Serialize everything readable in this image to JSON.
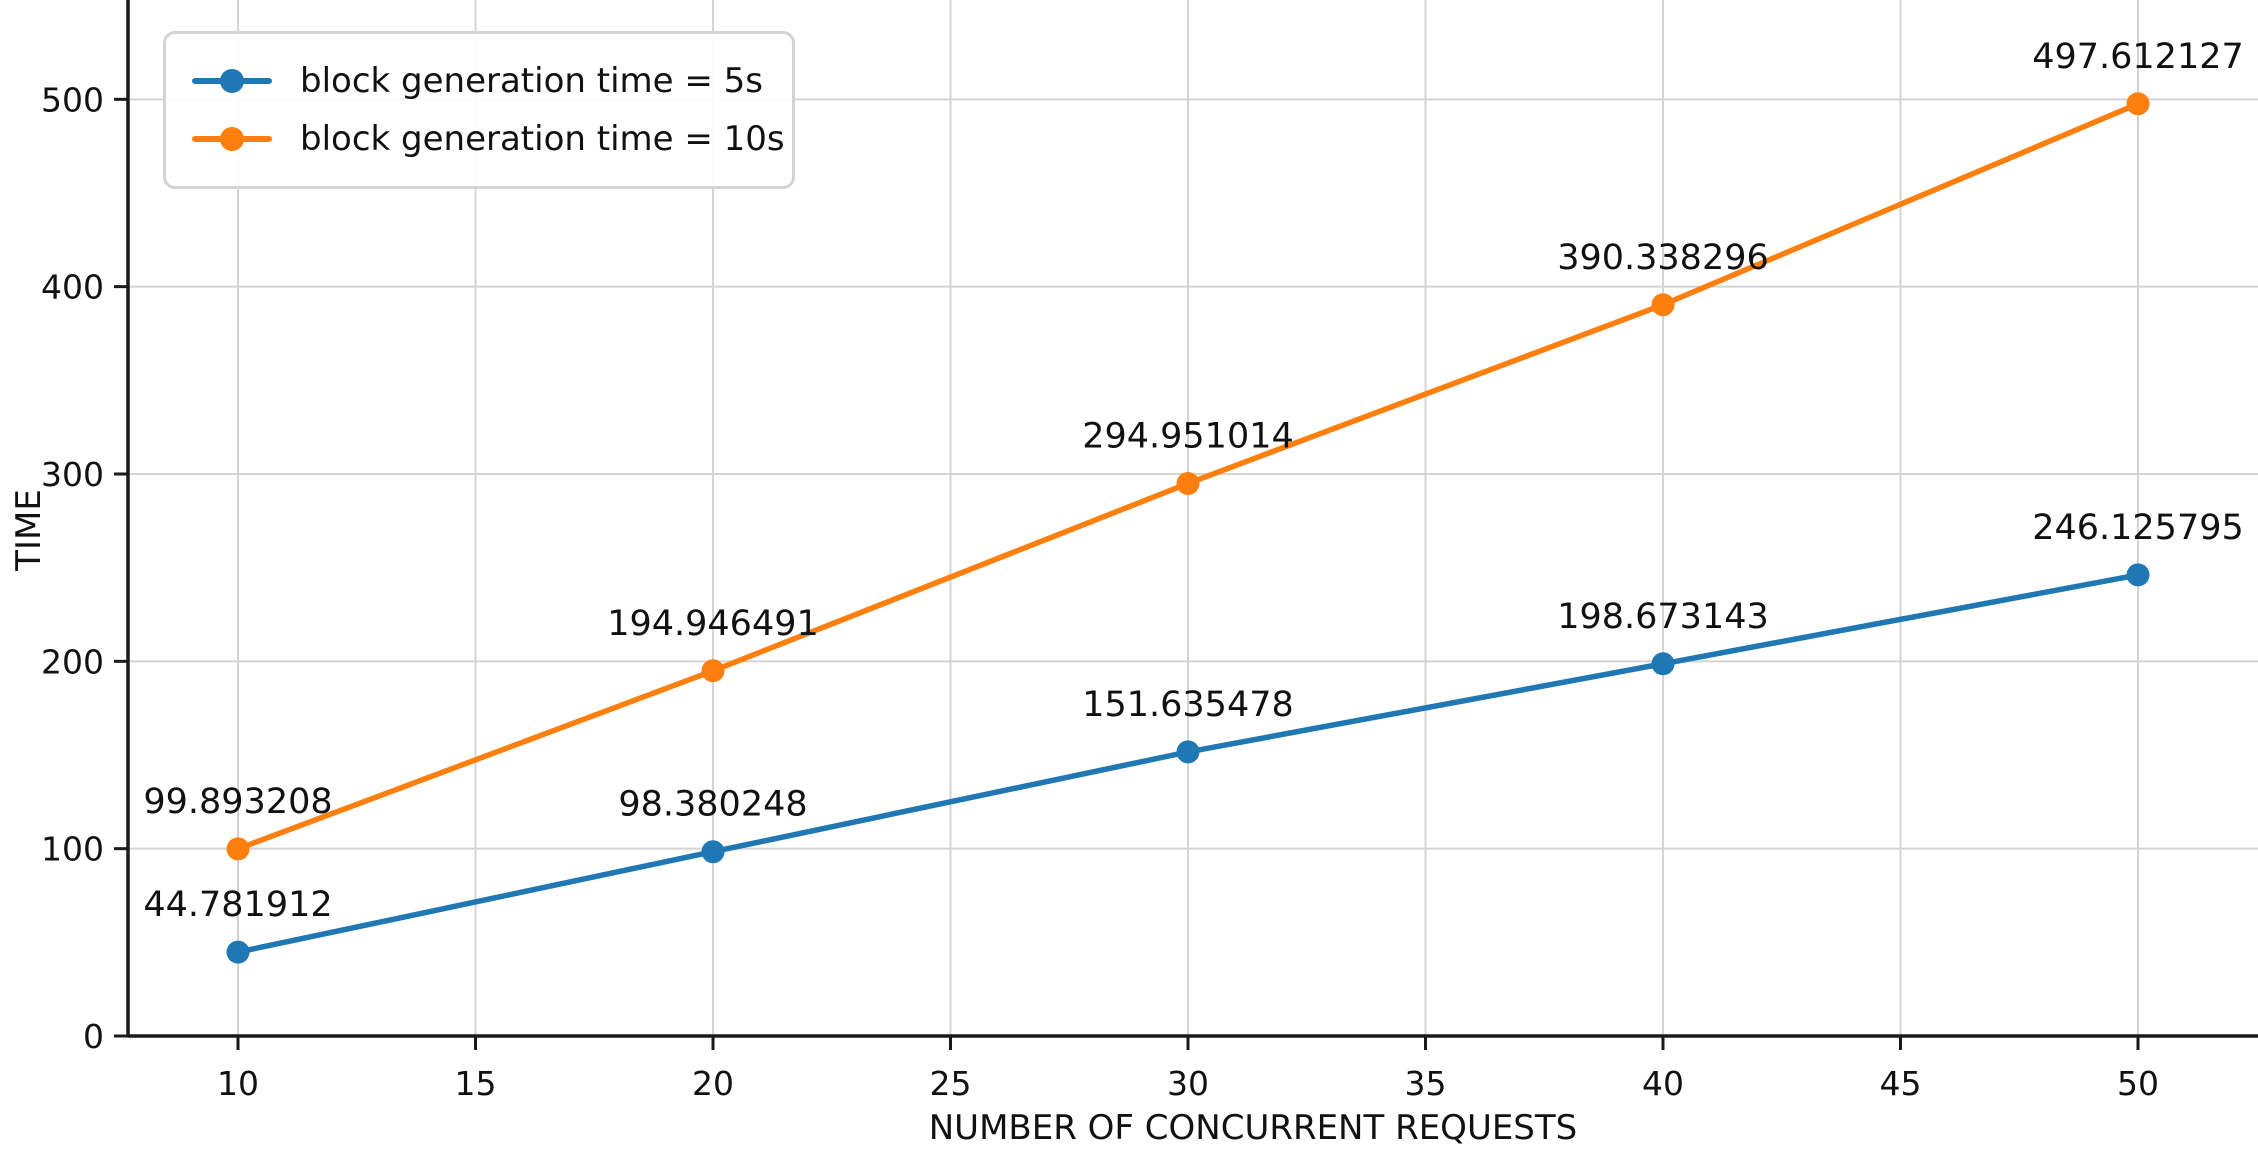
{
  "chart_data": {
    "type": "line",
    "title": "",
    "xlabel": "NUMBER OF CONCURRENT REQUESTS",
    "ylabel": "TIME",
    "x": [
      10,
      20,
      30,
      40,
      50
    ],
    "x_ticks": [
      "10",
      "15",
      "20",
      "25",
      "30",
      "35",
      "40",
      "45",
      "50"
    ],
    "y_ticks": [
      "0",
      "100",
      "200",
      "300",
      "400",
      "500"
    ],
    "xlim": [
      7.7,
      52.5
    ],
    "ylim": [
      0,
      553
    ],
    "grid": true,
    "legend_position": "upper-left",
    "series": [
      {
        "name": "block generation time = 5s",
        "color": "#1f77b4",
        "values": [
          44.781912,
          98.380248,
          151.635478,
          198.673143,
          246.125795
        ],
        "point_labels": [
          "44.781912",
          "98.380248",
          "151.635478",
          "198.673143",
          "246.125795"
        ]
      },
      {
        "name": "block generation time = 10s",
        "color": "#ff7f0e",
        "values": [
          99.893208,
          194.946491,
          294.951014,
          390.338296,
          497.612127
        ],
        "point_labels": [
          "99.893208",
          "194.946491",
          "294.951014",
          "390.338296",
          "497.612127"
        ]
      }
    ],
    "colors": {
      "grid": "#d4d4d4",
      "axis": "#1a1a1a",
      "text": "#111111",
      "background": "#ffffff"
    }
  }
}
